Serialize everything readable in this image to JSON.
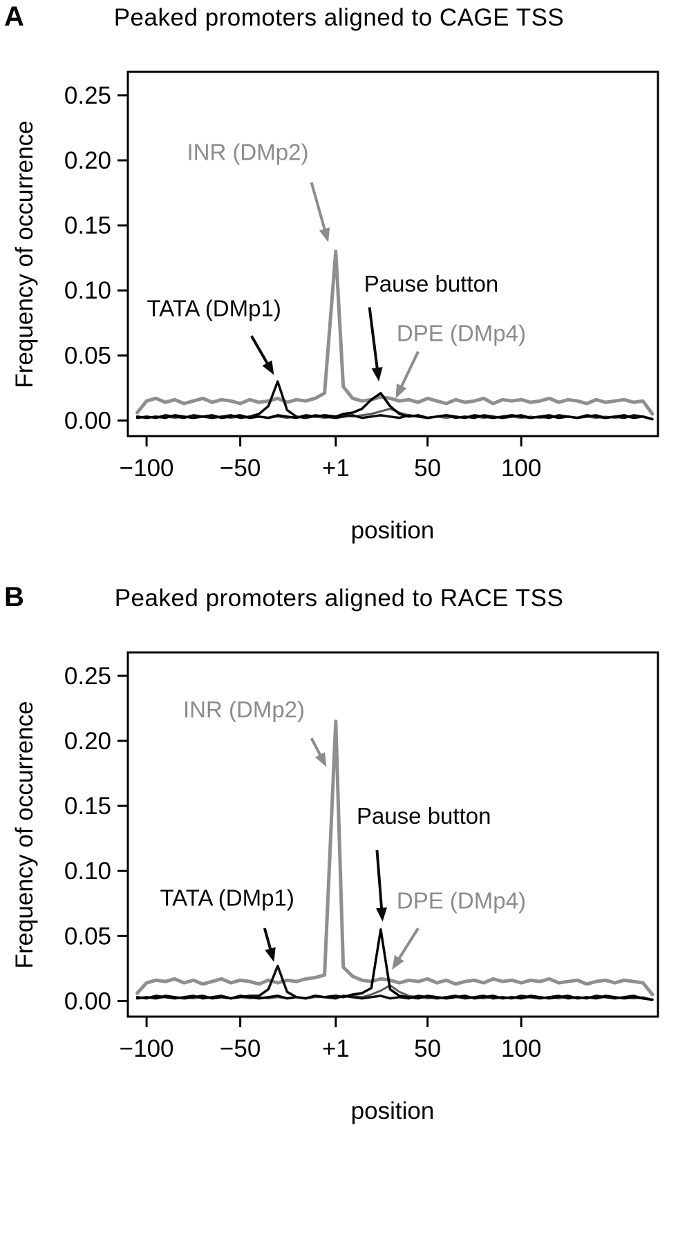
{
  "chart_data": [
    {
      "panel": "A",
      "type": "line",
      "title": "Peaked promoters aligned to CAGE TSS",
      "xlabel": "position",
      "ylabel": "Frequency of occurrence",
      "xlim": [
        -110,
        173
      ],
      "ylim": [
        -0.012,
        0.268
      ],
      "grid": false,
      "legend": "inline annotations with arrows",
      "xticks": [
        {
          "value": -100,
          "label": "−100"
        },
        {
          "value": -50,
          "label": "−50"
        },
        {
          "value": 1,
          "label": "+1"
        },
        {
          "value": 50,
          "label": "50"
        },
        {
          "value": 100,
          "label": "100"
        }
      ],
      "yticks": [
        {
          "value": 0.0,
          "label": "0.00"
        },
        {
          "value": 0.05,
          "label": "0.05"
        },
        {
          "value": 0.1,
          "label": "0.10"
        },
        {
          "value": 0.15,
          "label": "0.15"
        },
        {
          "value": 0.2,
          "label": "0.20"
        },
        {
          "value": 0.25,
          "label": "0.25"
        }
      ],
      "x": [
        -105,
        -100,
        -95,
        -90,
        -85,
        -80,
        -75,
        -70,
        -65,
        -60,
        -55,
        -50,
        -45,
        -40,
        -35,
        -30,
        -25,
        -20,
        -15,
        -10,
        -5,
        1,
        5,
        10,
        15,
        20,
        25,
        30,
        35,
        40,
        45,
        50,
        55,
        60,
        65,
        70,
        75,
        80,
        85,
        90,
        95,
        100,
        105,
        110,
        115,
        120,
        125,
        130,
        135,
        140,
        145,
        150,
        155,
        160,
        165,
        170
      ],
      "series": [
        {
          "name": "INR (DMp2)",
          "color": "#8f8f8f",
          "width": 5,
          "values": [
            0.006,
            0.015,
            0.017,
            0.014,
            0.016,
            0.013,
            0.015,
            0.017,
            0.014,
            0.016,
            0.015,
            0.013,
            0.016,
            0.014,
            0.015,
            0.017,
            0.014,
            0.016,
            0.015,
            0.017,
            0.021,
            0.13,
            0.026,
            0.017,
            0.015,
            0.016,
            0.018,
            0.017,
            0.015,
            0.016,
            0.014,
            0.017,
            0.015,
            0.013,
            0.016,
            0.014,
            0.015,
            0.017,
            0.013,
            0.016,
            0.015,
            0.016,
            0.014,
            0.015,
            0.017,
            0.014,
            0.016,
            0.015,
            0.013,
            0.016,
            0.014,
            0.015,
            0.016,
            0.014,
            0.015,
            0.005
          ]
        },
        {
          "name": "DPE (DMp4)",
          "color": "#5a5a5a",
          "width": 3,
          "values": [
            0.002,
            0.003,
            0.002,
            0.003,
            0.002,
            0.003,
            0.002,
            0.003,
            0.002,
            0.003,
            0.002,
            0.003,
            0.002,
            0.003,
            0.002,
            0.003,
            0.002,
            0.003,
            0.002,
            0.003,
            0.002,
            0.003,
            0.004,
            0.003,
            0.004,
            0.005,
            0.007,
            0.009,
            0.006,
            0.004,
            0.003,
            0.002,
            0.003,
            0.002,
            0.003,
            0.002,
            0.003,
            0.002,
            0.003,
            0.002,
            0.003,
            0.002,
            0.003,
            0.002,
            0.003,
            0.002,
            0.003,
            0.002,
            0.003,
            0.002,
            0.003,
            0.002,
            0.003,
            0.002,
            0.003,
            0.001
          ]
        },
        {
          "name": "TATA (DMp1)",
          "color": "#0d0d0d",
          "width": 3.5,
          "values": [
            0.002,
            0.003,
            0.002,
            0.004,
            0.003,
            0.002,
            0.004,
            0.003,
            0.002,
            0.003,
            0.004,
            0.002,
            0.003,
            0.005,
            0.011,
            0.03,
            0.008,
            0.003,
            0.002,
            0.004,
            0.003,
            0.002,
            0.003,
            0.004,
            0.002,
            0.003,
            0.004,
            0.003,
            0.002,
            0.004,
            0.003,
            0.002,
            0.003,
            0.004,
            0.002,
            0.003,
            0.002,
            0.004,
            0.003,
            0.002,
            0.003,
            0.004,
            0.002,
            0.003,
            0.002,
            0.004,
            0.003,
            0.002,
            0.003,
            0.004,
            0.002,
            0.003,
            0.002,
            0.004,
            0.003,
            0.001
          ]
        },
        {
          "name": "Pause button",
          "color": "#000000",
          "width": 3.5,
          "values": [
            0.003,
            0.002,
            0.003,
            0.002,
            0.004,
            0.003,
            0.002,
            0.003,
            0.004,
            0.002,
            0.003,
            0.004,
            0.002,
            0.003,
            0.002,
            0.004,
            0.003,
            0.002,
            0.004,
            0.003,
            0.004,
            0.003,
            0.005,
            0.006,
            0.009,
            0.016,
            0.021,
            0.011,
            0.005,
            0.003,
            0.004,
            0.002,
            0.003,
            0.004,
            0.003,
            0.002,
            0.004,
            0.003,
            0.002,
            0.003,
            0.004,
            0.003,
            0.002,
            0.003,
            0.004,
            0.002,
            0.003,
            0.002,
            0.004,
            0.003,
            0.002,
            0.003,
            0.004,
            0.002,
            0.003,
            0.001
          ]
        }
      ],
      "annotations": [
        {
          "label": "INR (DMp2)",
          "color": "#8c8c8c",
          "text": [
            -46,
            0.206
          ],
          "arrow": [
            [
              -12,
              0.183
            ],
            [
              -3,
              0.137
            ]
          ]
        },
        {
          "label": "TATA (DMp1)",
          "color": "#0a0a0a",
          "text": [
            -64,
            0.086
          ],
          "arrow": [
            [
              -44,
              0.065
            ],
            [
              -32,
              0.035
            ]
          ]
        },
        {
          "label": "Pause button",
          "color": "#0a0a0a",
          "text": [
            52,
            0.105
          ],
          "arrow": [
            [
              19,
              0.087
            ],
            [
              24,
              0.03
            ]
          ]
        },
        {
          "label": "DPE (DMp4)",
          "color": "#8c8c8c",
          "text": [
            68,
            0.067
          ],
          "arrow": [
            [
              45,
              0.053
            ],
            [
              33,
              0.017
            ]
          ]
        }
      ]
    },
    {
      "panel": "B",
      "type": "line",
      "title": "Peaked promoters aligned to RACE TSS",
      "xlabel": "position",
      "ylabel": "Frequency of occurrence",
      "xlim": [
        -110,
        173
      ],
      "ylim": [
        -0.012,
        0.268
      ],
      "grid": false,
      "legend": "inline annotations with arrows",
      "xticks": [
        {
          "value": -100,
          "label": "−100"
        },
        {
          "value": -50,
          "label": "−50"
        },
        {
          "value": 1,
          "label": "+1"
        },
        {
          "value": 50,
          "label": "50"
        },
        {
          "value": 100,
          "label": "100"
        }
      ],
      "yticks": [
        {
          "value": 0.0,
          "label": "0.00"
        },
        {
          "value": 0.05,
          "label": "0.05"
        },
        {
          "value": 0.1,
          "label": "0.10"
        },
        {
          "value": 0.15,
          "label": "0.15"
        },
        {
          "value": 0.2,
          "label": "0.20"
        },
        {
          "value": 0.25,
          "label": "0.25"
        }
      ],
      "x": [
        -105,
        -100,
        -95,
        -90,
        -85,
        -80,
        -75,
        -70,
        -65,
        -60,
        -55,
        -50,
        -45,
        -40,
        -35,
        -30,
        -25,
        -20,
        -15,
        -10,
        -5,
        1,
        5,
        10,
        15,
        20,
        25,
        30,
        35,
        40,
        45,
        50,
        55,
        60,
        65,
        70,
        75,
        80,
        85,
        90,
        95,
        100,
        105,
        110,
        115,
        120,
        125,
        130,
        135,
        140,
        145,
        150,
        155,
        160,
        165,
        170
      ],
      "series": [
        {
          "name": "INR (DMp2)",
          "color": "#8f8f8f",
          "width": 5,
          "values": [
            0.006,
            0.014,
            0.016,
            0.015,
            0.017,
            0.014,
            0.016,
            0.013,
            0.015,
            0.017,
            0.014,
            0.016,
            0.015,
            0.013,
            0.016,
            0.014,
            0.016,
            0.015,
            0.017,
            0.018,
            0.02,
            0.215,
            0.026,
            0.019,
            0.016,
            0.015,
            0.017,
            0.016,
            0.014,
            0.016,
            0.015,
            0.017,
            0.014,
            0.016,
            0.013,
            0.015,
            0.016,
            0.014,
            0.017,
            0.015,
            0.016,
            0.014,
            0.016,
            0.015,
            0.017,
            0.014,
            0.015,
            0.016,
            0.013,
            0.015,
            0.016,
            0.014,
            0.016,
            0.015,
            0.014,
            0.005
          ]
        },
        {
          "name": "DPE (DMp4)",
          "color": "#5a5a5a",
          "width": 3,
          "values": [
            0.002,
            0.003,
            0.002,
            0.003,
            0.002,
            0.003,
            0.002,
            0.003,
            0.002,
            0.003,
            0.002,
            0.003,
            0.002,
            0.003,
            0.002,
            0.003,
            0.002,
            0.003,
            0.002,
            0.003,
            0.003,
            0.004,
            0.003,
            0.004,
            0.003,
            0.005,
            0.008,
            0.012,
            0.007,
            0.004,
            0.003,
            0.002,
            0.003,
            0.002,
            0.003,
            0.002,
            0.003,
            0.002,
            0.003,
            0.002,
            0.003,
            0.002,
            0.003,
            0.002,
            0.003,
            0.002,
            0.003,
            0.002,
            0.003,
            0.002,
            0.003,
            0.002,
            0.003,
            0.002,
            0.003,
            0.001
          ]
        },
        {
          "name": "TATA (DMp1)",
          "color": "#0d0d0d",
          "width": 3.5,
          "values": [
            0.003,
            0.002,
            0.004,
            0.003,
            0.002,
            0.003,
            0.004,
            0.002,
            0.003,
            0.004,
            0.002,
            0.003,
            0.004,
            0.004,
            0.009,
            0.027,
            0.007,
            0.003,
            0.002,
            0.004,
            0.003,
            0.002,
            0.004,
            0.003,
            0.002,
            0.003,
            0.004,
            0.002,
            0.003,
            0.002,
            0.004,
            0.003,
            0.002,
            0.003,
            0.004,
            0.002,
            0.003,
            0.004,
            0.002,
            0.003,
            0.002,
            0.004,
            0.003,
            0.002,
            0.003,
            0.004,
            0.002,
            0.003,
            0.002,
            0.004,
            0.003,
            0.002,
            0.003,
            0.004,
            0.002,
            0.001
          ]
        },
        {
          "name": "Pause button",
          "color": "#000000",
          "width": 3.5,
          "values": [
            0.002,
            0.003,
            0.002,
            0.004,
            0.003,
            0.002,
            0.003,
            0.004,
            0.002,
            0.003,
            0.002,
            0.004,
            0.003,
            0.002,
            0.003,
            0.004,
            0.002,
            0.003,
            0.002,
            0.004,
            0.003,
            0.004,
            0.003,
            0.005,
            0.006,
            0.01,
            0.055,
            0.009,
            0.004,
            0.003,
            0.002,
            0.004,
            0.003,
            0.002,
            0.003,
            0.004,
            0.002,
            0.003,
            0.004,
            0.002,
            0.003,
            0.002,
            0.004,
            0.003,
            0.002,
            0.003,
            0.004,
            0.002,
            0.003,
            0.002,
            0.004,
            0.003,
            0.002,
            0.003,
            0.002,
            0.001
          ]
        }
      ],
      "annotations": [
        {
          "label": "INR (DMp2)",
          "color": "#8c8c8c",
          "text": [
            -48,
            0.224
          ],
          "arrow": [
            [
              -12,
              0.202
            ],
            [
              -4,
              0.18
            ]
          ]
        },
        {
          "label": "TATA (DMp1)",
          "color": "#0a0a0a",
          "text": [
            -57,
            0.079
          ],
          "arrow": [
            [
              -37,
              0.056
            ],
            [
              -32,
              0.03
            ]
          ]
        },
        {
          "label": "Pause button",
          "color": "#0a0a0a",
          "text": [
            48,
            0.142
          ],
          "arrow": [
            [
              23,
              0.116
            ],
            [
              26,
              0.061
            ]
          ]
        },
        {
          "label": "DPE (DMp4)",
          "color": "#8c8c8c",
          "text": [
            68,
            0.077
          ],
          "arrow": [
            [
              45,
              0.056
            ],
            [
              31,
              0.024
            ]
          ]
        }
      ]
    }
  ]
}
